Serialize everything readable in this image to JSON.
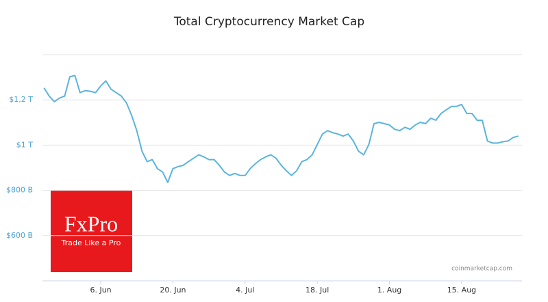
{
  "chart_data": {
    "type": "line",
    "title": "Total Cryptocurrency Market Cap",
    "source": "coinmarketcap.com",
    "logo_name": "FxPro",
    "logo_tagline": "Trade Like a Pro",
    "categories": [
      null,
      null,
      null,
      null,
      null,
      null,
      null,
      null,
      null,
      null,
      null,
      "6. Jun",
      null,
      null,
      null,
      null,
      null,
      null,
      null,
      null,
      null,
      null,
      null,
      null,
      null,
      "20. Jun",
      null,
      null,
      null,
      null,
      null,
      null,
      null,
      null,
      null,
      null,
      null,
      null,
      null,
      "4. Jul",
      null,
      null,
      null,
      null,
      null,
      null,
      null,
      null,
      null,
      null,
      null,
      null,
      null,
      "18. Jul",
      null,
      null,
      null,
      null,
      null,
      null,
      null,
      null,
      null,
      null,
      null,
      null,
      null,
      "1. Aug",
      null,
      null,
      null,
      null,
      null,
      null,
      null,
      null,
      null,
      null,
      null,
      null,
      null,
      "15. Aug",
      null,
      null,
      null,
      null,
      null,
      null,
      null,
      null,
      null,
      null,
      null
    ],
    "values": [
      1253,
      1217,
      1192,
      1208,
      1217,
      1302,
      1308,
      1232,
      1241,
      1238,
      1232,
      1262,
      1284,
      1247,
      1232,
      1217,
      1186,
      1131,
      1064,
      973,
      927,
      936,
      896,
      881,
      835,
      896,
      905,
      911,
      927,
      942,
      957,
      948,
      936,
      936,
      911,
      881,
      866,
      875,
      866,
      866,
      896,
      918,
      936,
      948,
      957,
      942,
      911,
      887,
      866,
      887,
      927,
      936,
      957,
      1003,
      1049,
      1064,
      1055,
      1049,
      1040,
      1049,
      1018,
      973,
      957,
      1003,
      1095,
      1101,
      1095,
      1089,
      1070,
      1064,
      1079,
      1070,
      1089,
      1101,
      1095,
      1119,
      1110,
      1140,
      1156,
      1171,
      1171,
      1180,
      1140,
      1140,
      1110,
      1110,
      1018,
      1009,
      1009,
      1015,
      1018,
      1034,
      1040
    ],
    "color": "#5ab4de",
    "ylim": [
      400,
      1400
    ],
    "yticks": [
      {
        "value": 600,
        "label": "$600 B"
      },
      {
        "value": 800,
        "label": "$800 B"
      },
      {
        "value": 1000,
        "label": "$1 T"
      },
      {
        "value": 1200,
        "label": "$1,2 T"
      }
    ],
    "grid": true
  }
}
